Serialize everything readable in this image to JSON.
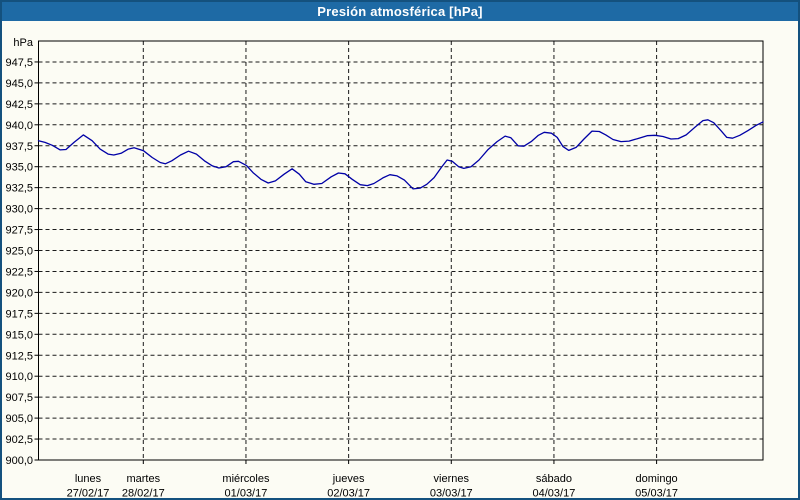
{
  "window": {
    "title": "Presión atmosférica [hPa]"
  },
  "chart_data": {
    "type": "line",
    "title": "Presión atmosférica [hPa]",
    "unit_label": "hPa",
    "y_axis": {
      "min": 900,
      "max": 950,
      "tick_step": 2.5,
      "decimal_separator": ",",
      "tick_labels": [
        "947,5",
        "945,0",
        "942,5",
        "940,0",
        "937,5",
        "935,0",
        "932,5",
        "930,0",
        "927,5",
        "925,0",
        "922,5",
        "920,0",
        "917,5",
        "915,0",
        "912,5",
        "910,0",
        "907,5",
        "905,0",
        "902,5",
        "900,0"
      ]
    },
    "x_axis": {
      "days": [
        {
          "name": "lunes",
          "date": "27/02/17"
        },
        {
          "name": "martes",
          "date": "28/02/17"
        },
        {
          "name": "miércoles",
          "date": "01/03/17"
        },
        {
          "name": "jueves",
          "date": "02/03/17"
        },
        {
          "name": "viernes",
          "date": "03/03/17"
        },
        {
          "name": "sábado",
          "date": "04/03/17"
        },
        {
          "name": "domingo",
          "date": "05/03/17"
        }
      ]
    },
    "grid": {
      "style": "dashed",
      "color": "#1a1a1a",
      "h_step_hpa": 2.5,
      "v_lines_per_day": 1
    },
    "ylim": [
      900,
      950
    ],
    "series": [
      {
        "name": "Presión atmosférica",
        "color": "#0000a6",
        "points": [
          [
            0.0,
            938.1
          ],
          [
            0.009,
            937.9
          ],
          [
            0.019,
            937.55
          ],
          [
            0.03,
            937.0
          ],
          [
            0.038,
            937.05
          ],
          [
            0.049,
            937.9
          ],
          [
            0.062,
            938.8
          ],
          [
            0.074,
            938.1
          ],
          [
            0.085,
            937.1
          ],
          [
            0.096,
            936.5
          ],
          [
            0.104,
            936.4
          ],
          [
            0.114,
            936.6
          ],
          [
            0.124,
            937.1
          ],
          [
            0.132,
            937.25
          ],
          [
            0.145,
            936.9
          ],
          [
            0.157,
            936.1
          ],
          [
            0.168,
            935.5
          ],
          [
            0.175,
            935.35
          ],
          [
            0.184,
            935.7
          ],
          [
            0.196,
            936.4
          ],
          [
            0.207,
            936.85
          ],
          [
            0.218,
            936.5
          ],
          [
            0.229,
            935.7
          ],
          [
            0.24,
            935.1
          ],
          [
            0.249,
            934.85
          ],
          [
            0.259,
            935.0
          ],
          [
            0.269,
            935.6
          ],
          [
            0.276,
            935.65
          ],
          [
            0.287,
            935.15
          ],
          [
            0.296,
            934.3
          ],
          [
            0.307,
            933.5
          ],
          [
            0.317,
            933.05
          ],
          [
            0.327,
            933.3
          ],
          [
            0.339,
            934.1
          ],
          [
            0.35,
            934.75
          ],
          [
            0.36,
            934.1
          ],
          [
            0.369,
            933.2
          ],
          [
            0.38,
            932.9
          ],
          [
            0.391,
            933.0
          ],
          [
            0.404,
            933.8
          ],
          [
            0.414,
            934.25
          ],
          [
            0.423,
            934.15
          ],
          [
            0.433,
            933.5
          ],
          [
            0.444,
            932.85
          ],
          [
            0.454,
            932.75
          ],
          [
            0.463,
            933.0
          ],
          [
            0.476,
            933.7
          ],
          [
            0.485,
            934.05
          ],
          [
            0.495,
            933.9
          ],
          [
            0.505,
            933.4
          ],
          [
            0.517,
            932.35
          ],
          [
            0.527,
            932.45
          ],
          [
            0.536,
            932.9
          ],
          [
            0.546,
            933.7
          ],
          [
            0.556,
            934.9
          ],
          [
            0.564,
            935.8
          ],
          [
            0.571,
            935.65
          ],
          [
            0.58,
            935.0
          ],
          [
            0.587,
            934.8
          ],
          [
            0.597,
            935.0
          ],
          [
            0.608,
            935.8
          ],
          [
            0.62,
            937.0
          ],
          [
            0.633,
            938.0
          ],
          [
            0.644,
            938.65
          ],
          [
            0.652,
            938.45
          ],
          [
            0.662,
            937.5
          ],
          [
            0.67,
            937.45
          ],
          [
            0.68,
            938.0
          ],
          [
            0.69,
            938.75
          ],
          [
            0.698,
            939.1
          ],
          [
            0.708,
            939.0
          ],
          [
            0.716,
            938.5
          ],
          [
            0.724,
            937.4
          ],
          [
            0.732,
            936.95
          ],
          [
            0.742,
            937.3
          ],
          [
            0.753,
            938.3
          ],
          [
            0.764,
            939.25
          ],
          [
            0.774,
            939.2
          ],
          [
            0.783,
            938.8
          ],
          [
            0.793,
            938.25
          ],
          [
            0.804,
            938.0
          ],
          [
            0.815,
            938.05
          ],
          [
            0.827,
            938.35
          ],
          [
            0.84,
            938.7
          ],
          [
            0.851,
            938.75
          ],
          [
            0.862,
            938.6
          ],
          [
            0.873,
            938.3
          ],
          [
            0.883,
            938.35
          ],
          [
            0.894,
            938.8
          ],
          [
            0.906,
            939.7
          ],
          [
            0.917,
            940.5
          ],
          [
            0.924,
            940.6
          ],
          [
            0.932,
            940.25
          ],
          [
            0.942,
            939.3
          ],
          [
            0.95,
            938.5
          ],
          [
            0.958,
            938.4
          ],
          [
            0.968,
            938.75
          ],
          [
            0.979,
            939.3
          ],
          [
            0.99,
            939.9
          ],
          [
            1.0,
            940.35
          ]
        ]
      }
    ]
  },
  "colors": {
    "titlebar": "#1e6aa5",
    "window_border": "#14517e",
    "background": "#fcfcf4",
    "line": "#0000a6",
    "grid": "#1a1a1a"
  }
}
